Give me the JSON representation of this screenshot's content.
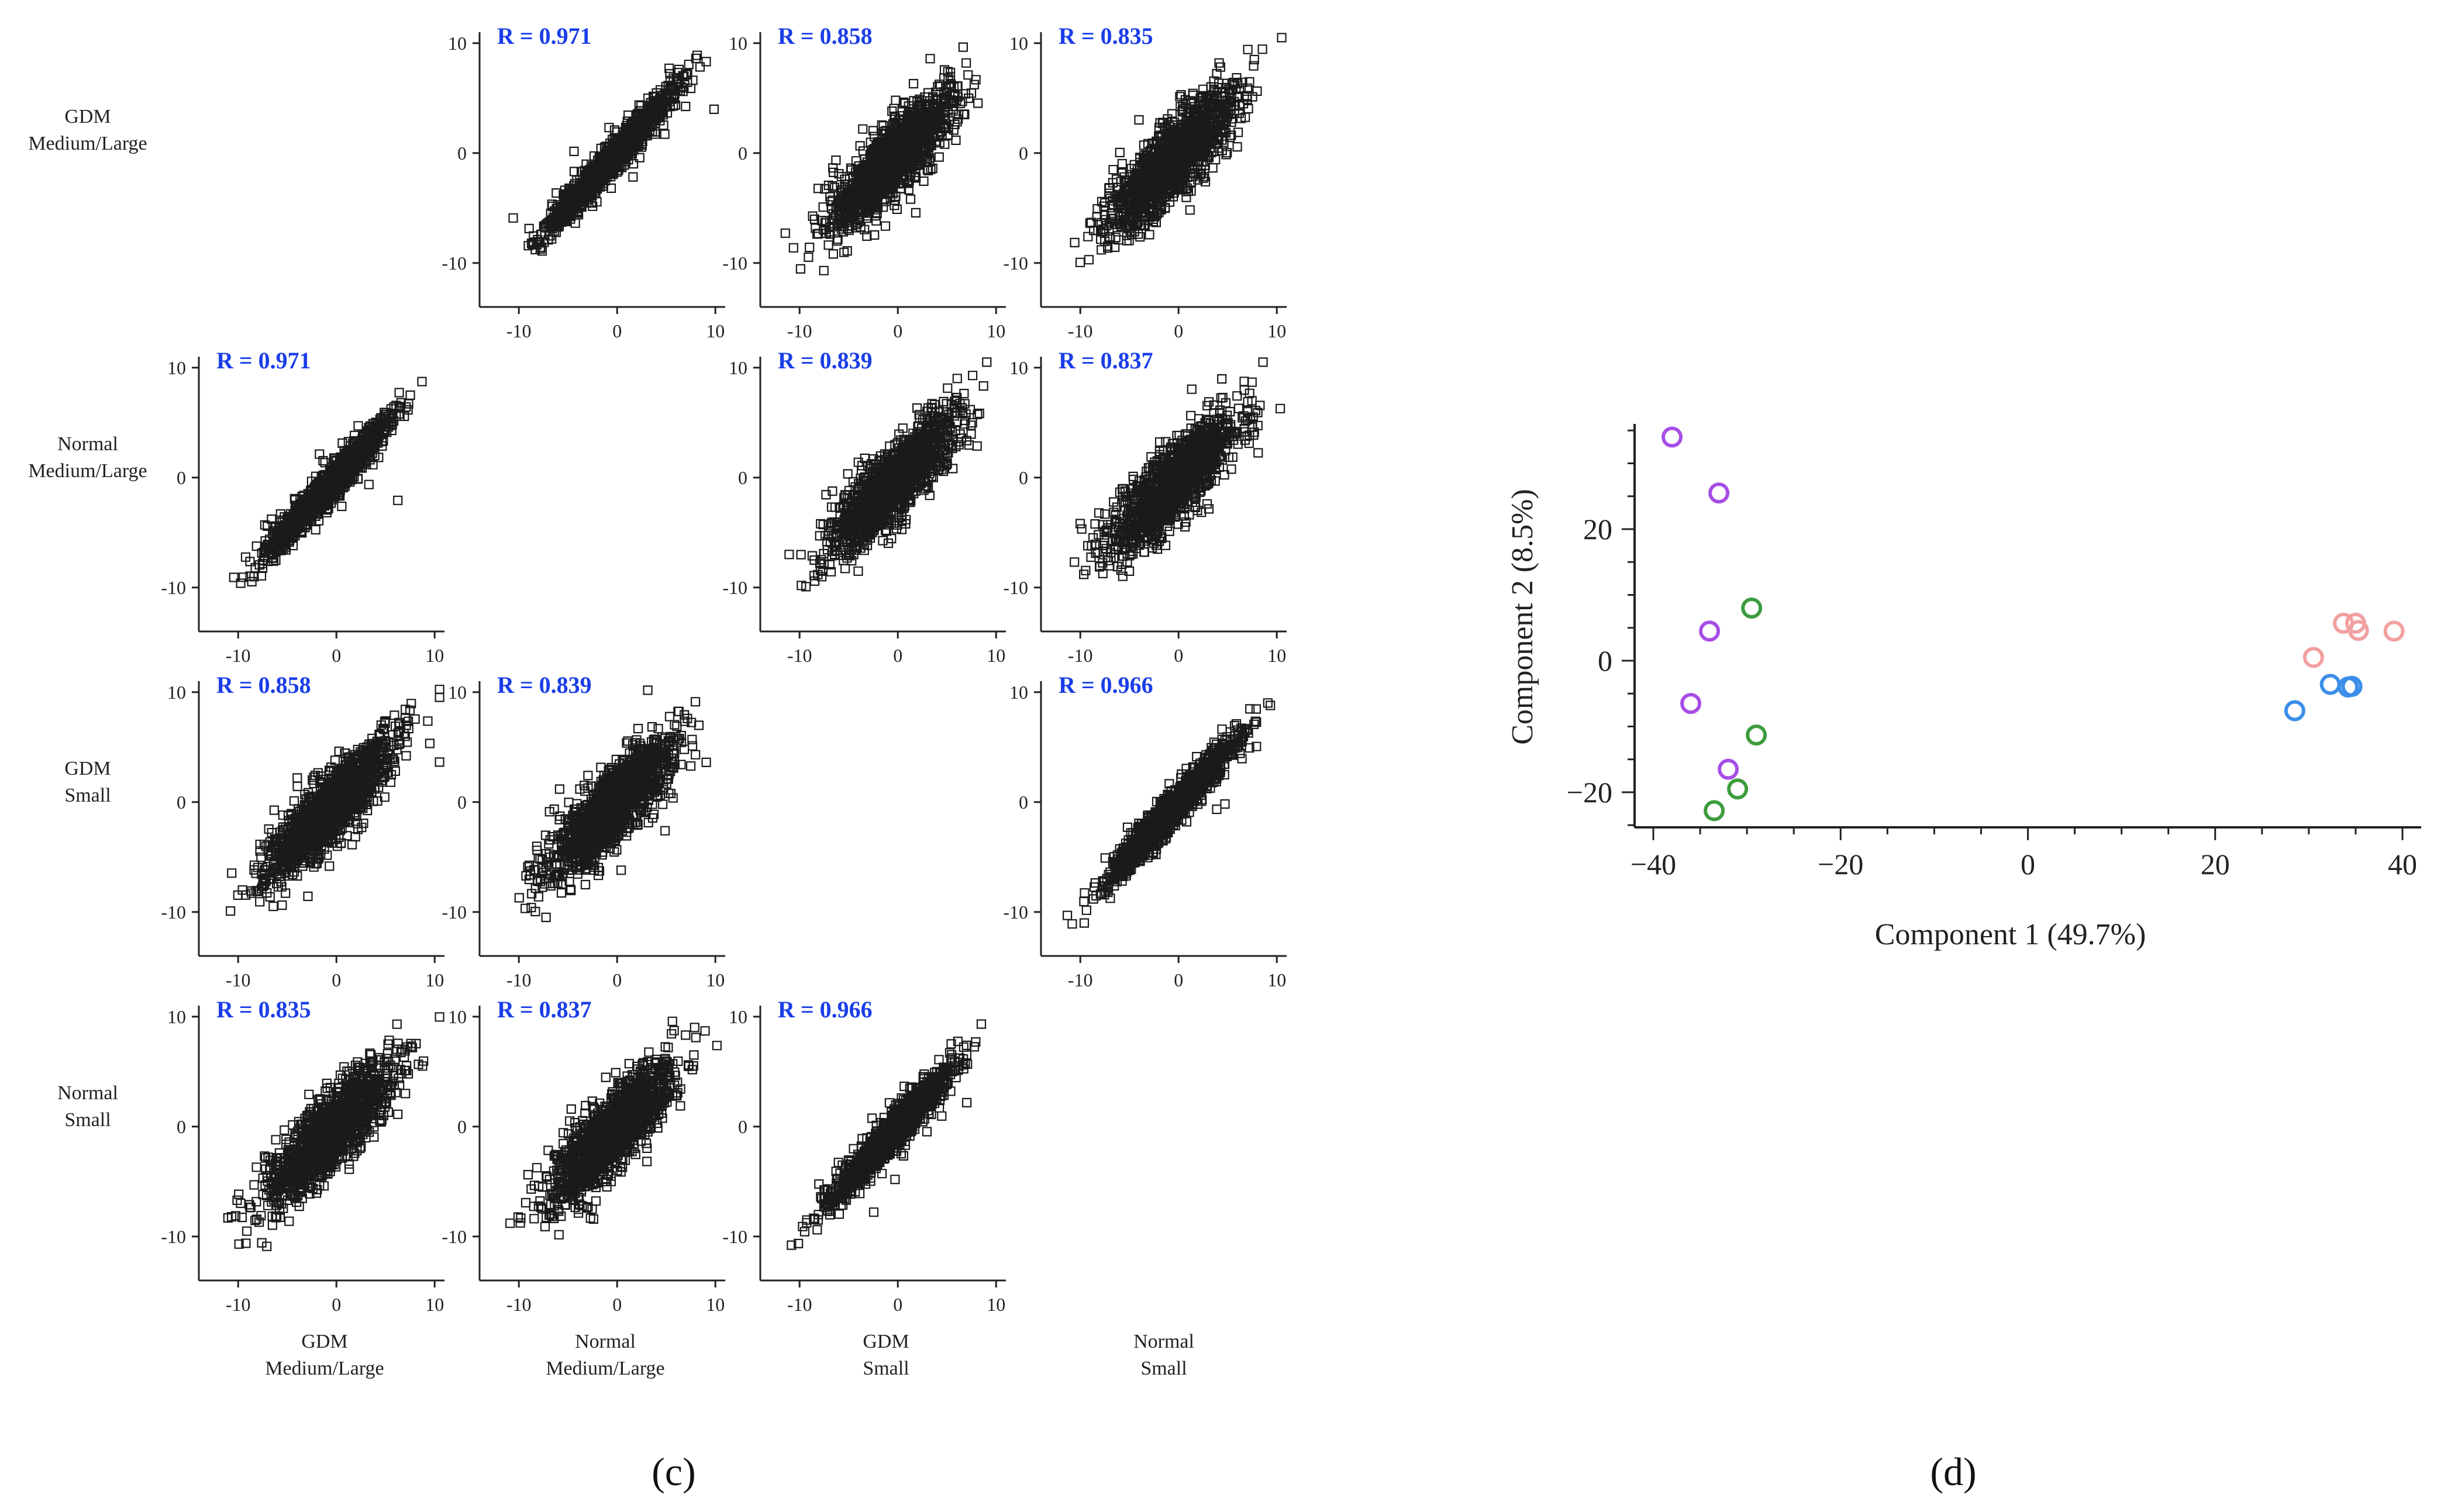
{
  "figure": {
    "panel_c_label": "(c)",
    "panel_d_label": "(d)"
  },
  "matrix": {
    "row_labels": [
      [
        "GDM",
        "Medium/Large"
      ],
      [
        "Normal",
        "Medium/Large"
      ],
      [
        "GDM",
        "Small"
      ],
      [
        "Normal",
        "Small"
      ]
    ],
    "col_labels": [
      [
        "GDM",
        "Medium/Large"
      ],
      [
        "Normal",
        "Medium/Large"
      ],
      [
        "GDM",
        "Small"
      ],
      [
        "Normal",
        "Small"
      ]
    ],
    "tick_labels": [
      "-10",
      "0",
      "10"
    ],
    "colors": {
      "r_text": "#1a3ee8",
      "marker": "#1a1a1a"
    }
  },
  "chart_data": [
    {
      "type": "scatter",
      "chart": "correlation-matrix",
      "xlim": [
        -14,
        11
      ],
      "ylim": [
        -14,
        11
      ],
      "xticks": [
        -10,
        0,
        10
      ],
      "yticks": [
        -10,
        0,
        10
      ],
      "marker": "open-square",
      "panels": [
        {
          "row": 0,
          "col": 1,
          "r_label": "R = 0.971",
          "r": 0.971
        },
        {
          "row": 0,
          "col": 2,
          "r_label": "R = 0.858",
          "r": 0.858
        },
        {
          "row": 0,
          "col": 3,
          "r_label": "R = 0.835",
          "r": 0.835
        },
        {
          "row": 1,
          "col": 0,
          "r_label": "R = 0.971",
          "r": 0.971
        },
        {
          "row": 1,
          "col": 2,
          "r_label": "R = 0.839",
          "r": 0.839
        },
        {
          "row": 1,
          "col": 3,
          "r_label": "R = 0.837",
          "r": 0.837
        },
        {
          "row": 2,
          "col": 0,
          "r_label": "R = 0.858",
          "r": 0.858
        },
        {
          "row": 2,
          "col": 1,
          "r_label": "R = 0.839",
          "r": 0.839
        },
        {
          "row": 2,
          "col": 3,
          "r_label": "R = 0.966",
          "r": 0.966
        },
        {
          "row": 3,
          "col": 0,
          "r_label": "R = 0.835",
          "r": 0.835
        },
        {
          "row": 3,
          "col": 1,
          "r_label": "R = 0.837",
          "r": 0.837
        },
        {
          "row": 3,
          "col": 2,
          "r_label": "R = 0.966",
          "r": 0.966
        }
      ]
    },
    {
      "type": "scatter",
      "chart": "pca",
      "xlabel": "Component 1 (49.7%)",
      "ylabel": "Component 2 (8.5%)",
      "xlim": [
        -42,
        42
      ],
      "ylim": [
        -26,
        36
      ],
      "xticks": [
        -40,
        -20,
        0,
        20,
        40
      ],
      "xtick_labels": [
        "−40",
        "−20",
        "0",
        "20",
        "40"
      ],
      "yticks": [
        -20,
        0,
        20
      ],
      "ytick_labels": [
        "−20",
        "0",
        "20"
      ],
      "marker": "open-circle",
      "series": [
        {
          "color": "#a64ee6",
          "points": [
            [
              -38,
              34
            ],
            [
              -33,
              25.5
            ],
            [
              -34,
              4.5
            ],
            [
              -36,
              -6.5
            ],
            [
              -32,
              -16.5
            ]
          ]
        },
        {
          "color": "#3d9c3d",
          "points": [
            [
              -29.5,
              8
            ],
            [
              -29,
              -11.3
            ],
            [
              -31,
              -19.5
            ],
            [
              -33.5,
              -22.8
            ]
          ]
        },
        {
          "color": "#f2a0a0",
          "points": [
            [
              30.5,
              0.5
            ],
            [
              33.7,
              5.7
            ],
            [
              35,
              5.7
            ],
            [
              35.3,
              4.6
            ],
            [
              39.1,
              4.5
            ]
          ]
        },
        {
          "color": "#3a8ee8",
          "points": [
            [
              28.5,
              -7.6
            ],
            [
              32.3,
              -3.6
            ],
            [
              34.2,
              -4
            ],
            [
              34.6,
              -3.9
            ]
          ]
        }
      ]
    }
  ]
}
